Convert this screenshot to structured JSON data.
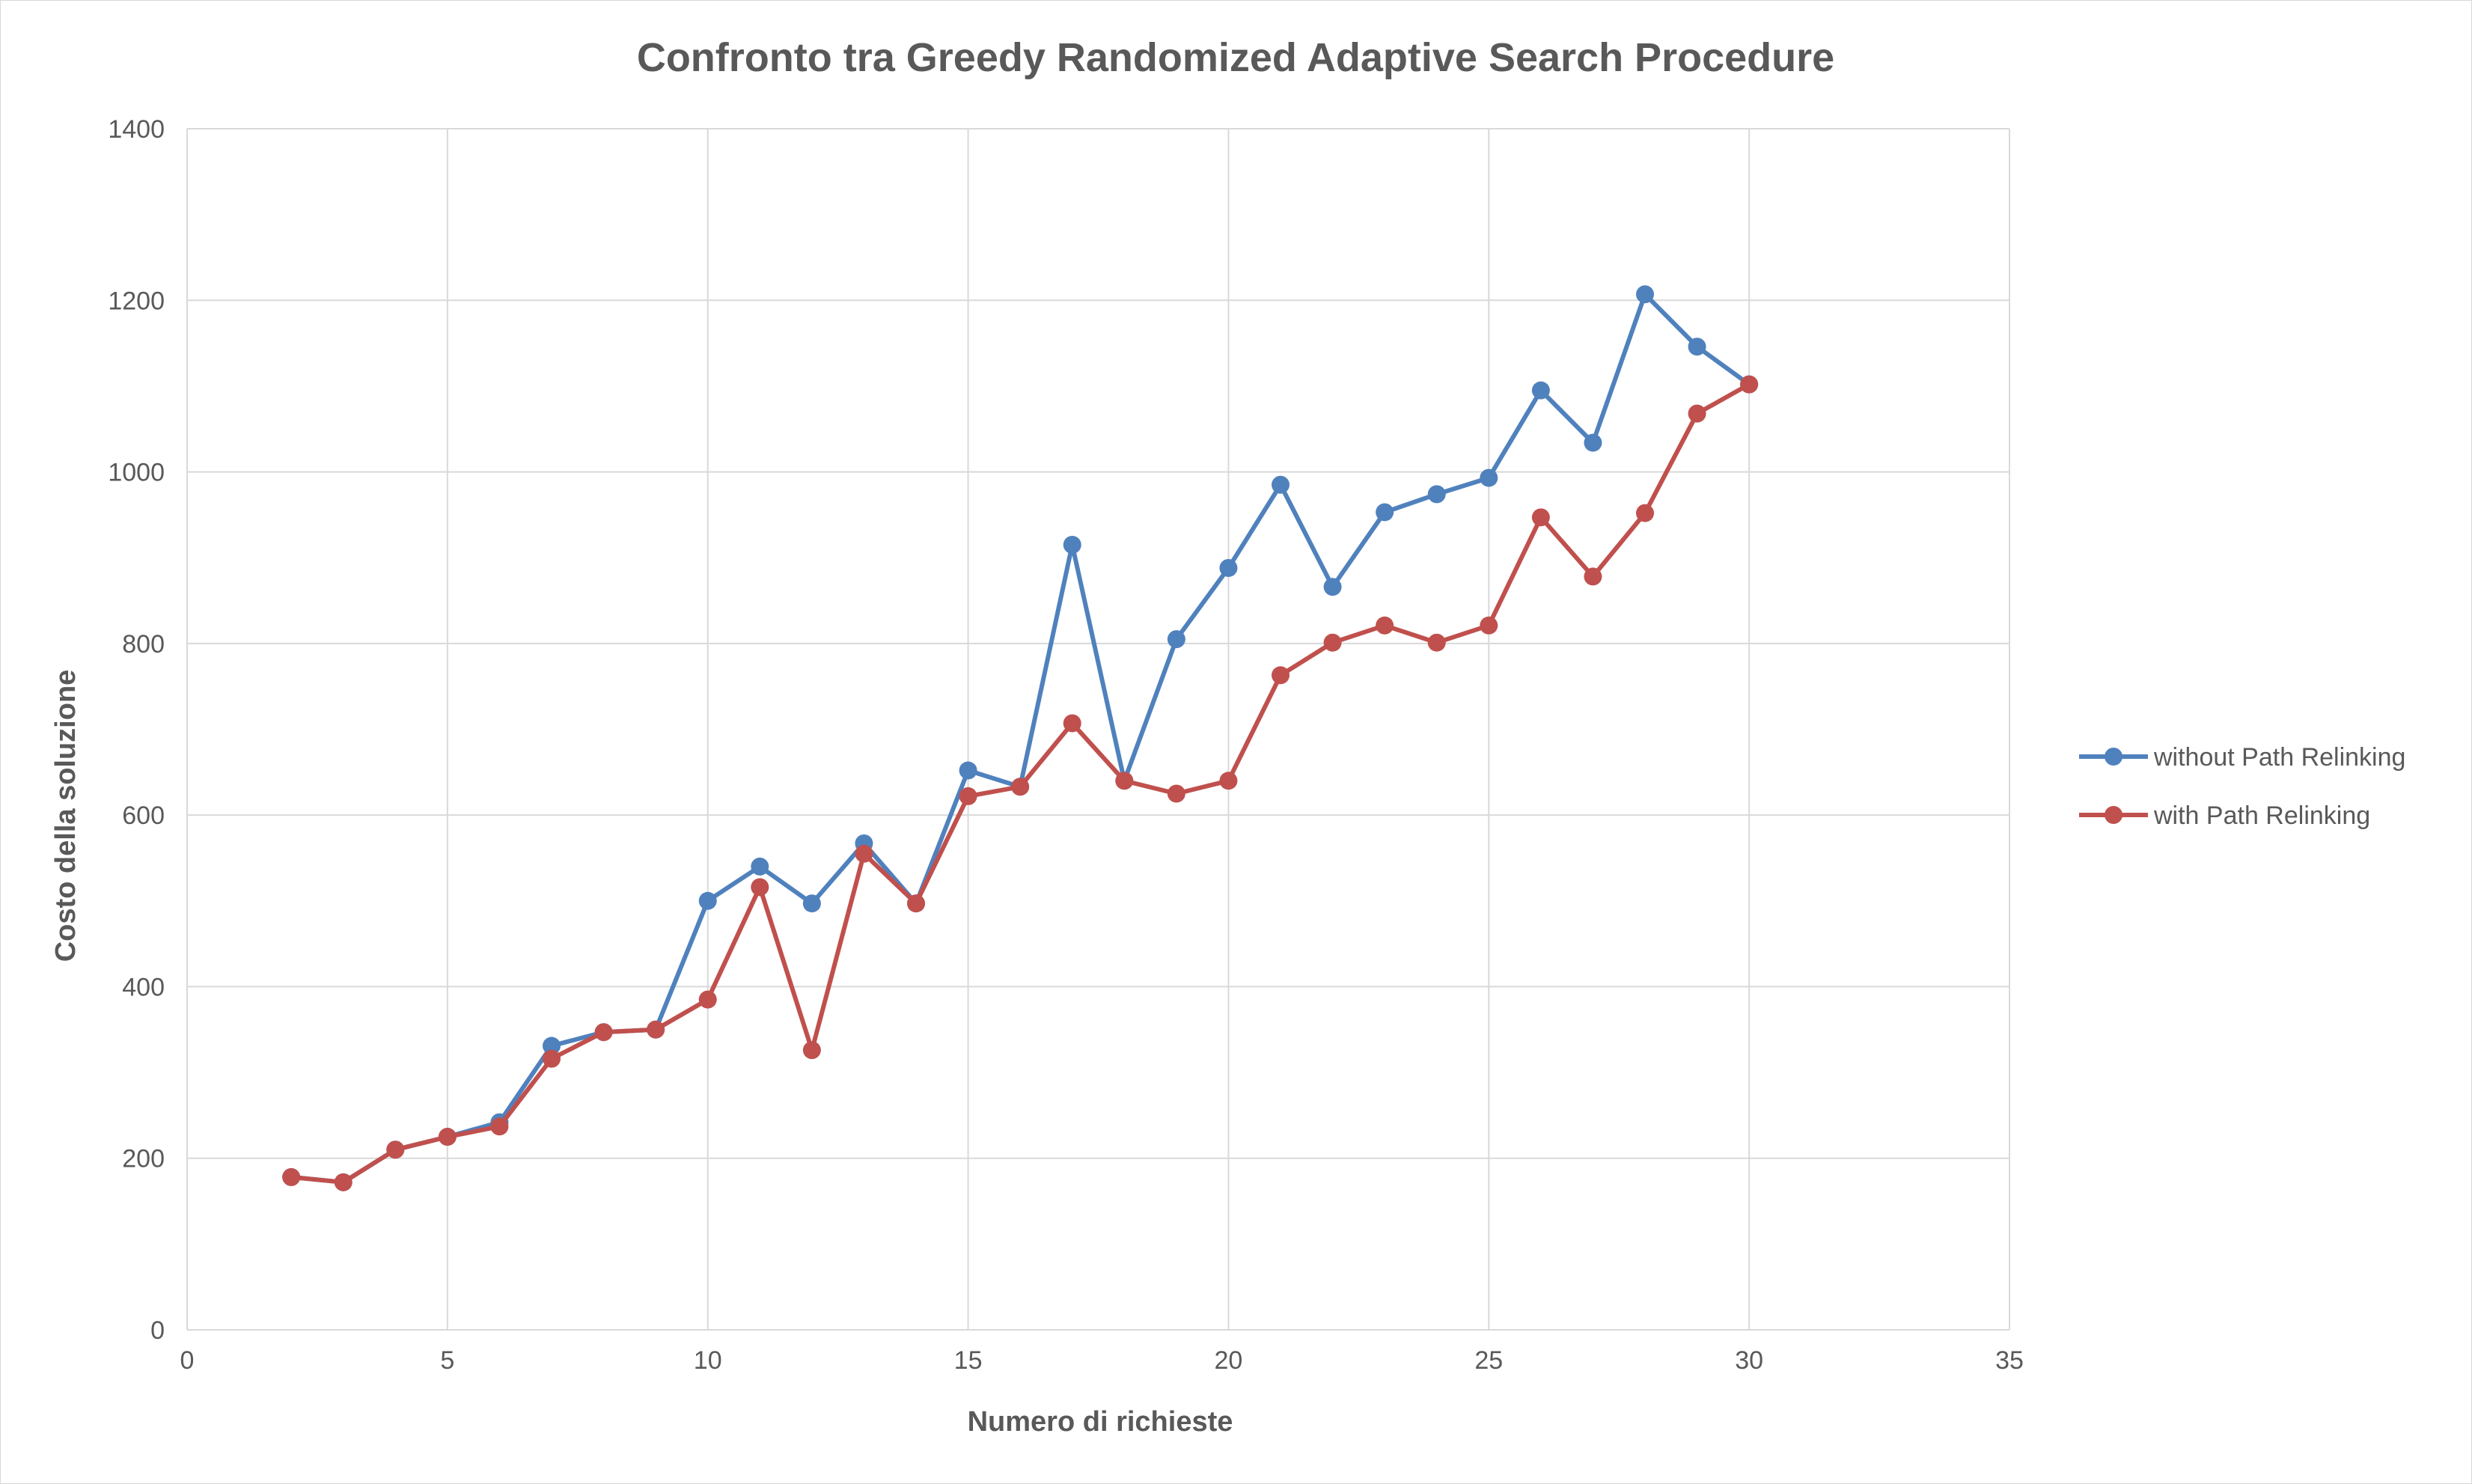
{
  "chart_data": {
    "type": "line",
    "title": "Confronto tra Greedy Randomized Adaptive Search Procedure",
    "xlabel": "Numero di richieste",
    "ylabel": "Costo della soluzione",
    "xlim": [
      0,
      35
    ],
    "ylim": [
      0,
      1400
    ],
    "x_ticks": [
      0,
      5,
      10,
      15,
      20,
      25,
      30,
      35
    ],
    "y_ticks": [
      0,
      200,
      400,
      600,
      800,
      1000,
      1200,
      1400
    ],
    "grid": true,
    "legend_position": "right",
    "series": [
      {
        "name": "without Path Relinking",
        "color": "#4f81bd",
        "x": [
          2,
          3,
          4,
          5,
          6,
          7,
          8,
          9,
          10,
          11,
          12,
          13,
          14,
          15,
          16,
          17,
          18,
          19,
          20,
          21,
          22,
          23,
          24,
          25,
          26,
          27,
          28,
          29,
          30
        ],
        "y": [
          178,
          172,
          210,
          225,
          242,
          331,
          347,
          350,
          500,
          540,
          497,
          567,
          497,
          652,
          633,
          915,
          640,
          805,
          888,
          985,
          866,
          953,
          974,
          993,
          1095,
          1034,
          1207,
          1146,
          1102
        ]
      },
      {
        "name": "with Path Relinking",
        "color": "#c0504d",
        "x": [
          2,
          3,
          4,
          5,
          6,
          7,
          8,
          9,
          10,
          11,
          12,
          13,
          14,
          15,
          16,
          17,
          18,
          19,
          20,
          21,
          22,
          23,
          24,
          25,
          26,
          27,
          28,
          29,
          30
        ],
        "y": [
          178,
          172,
          210,
          225,
          237,
          316,
          347,
          350,
          385,
          516,
          326,
          555,
          497,
          622,
          633,
          707,
          640,
          625,
          640,
          763,
          801,
          821,
          801,
          821,
          947,
          878,
          952,
          1068,
          1102
        ]
      }
    ]
  }
}
